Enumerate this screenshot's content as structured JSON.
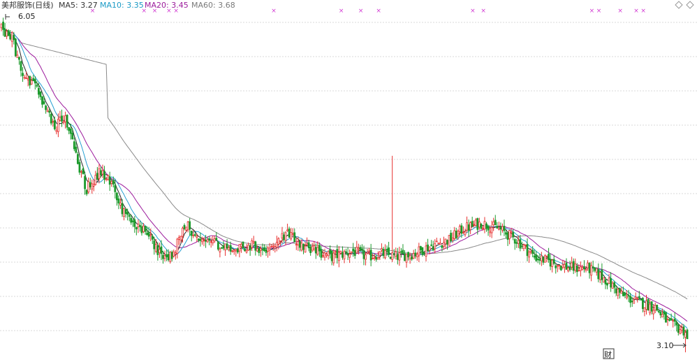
{
  "header": {
    "stock_name": "美邦服饰(日线)",
    "ma_labels": [
      {
        "text": "MA5: 3.27",
        "color": "#333333"
      },
      {
        "text": "MA10: 3.35",
        "color": "#1a9ac6"
      },
      {
        "text": "MA20: 3.45",
        "color": "#9c1c9c"
      },
      {
        "text": "MA60: 3.68",
        "color": "#7a7a7a"
      }
    ]
  },
  "icons": {
    "diamond_left": "diamond-icon",
    "diamond_right": "diamond-icon",
    "finance": "财"
  },
  "colors": {
    "up": "#e8302f",
    "down": "#1c9a2c",
    "ma5": "#222222",
    "ma10": "#27a0d2",
    "ma20": "#9c1a9c",
    "ma60": "#8a8a8a",
    "grid": "#d8d8d8",
    "marker": "#d23ad2"
  },
  "chart_data": {
    "type": "candlestick",
    "title": "美邦服饰(日线)",
    "xlabel": "",
    "ylabel": "",
    "ylim": [
      3.05,
      6.15
    ],
    "grid": {
      "horizontal": true,
      "vertical": false
    },
    "annotations": {
      "high_label": "6.05",
      "low_label": "3.10"
    },
    "marker_symbol": "×",
    "marker_bars": [
      51,
      80,
      86,
      94,
      98,
      153,
      191,
      202,
      212,
      265,
      271,
      332,
      336,
      348,
      357,
      361
    ],
    "anchors": [
      [
        0,
        5.98
      ],
      [
        6,
        5.9
      ],
      [
        12,
        5.55
      ],
      [
        20,
        5.45
      ],
      [
        30,
        5.1
      ],
      [
        36,
        5.2
      ],
      [
        42,
        4.85
      ],
      [
        48,
        4.55
      ],
      [
        55,
        4.7
      ],
      [
        62,
        4.6
      ],
      [
        70,
        4.3
      ],
      [
        80,
        4.2
      ],
      [
        88,
        4.0
      ],
      [
        96,
        3.95
      ],
      [
        104,
        4.25
      ],
      [
        112,
        4.05
      ],
      [
        118,
        4.1
      ],
      [
        128,
        4.0
      ],
      [
        140,
        4.05
      ],
      [
        150,
        4.0
      ],
      [
        160,
        4.15
      ],
      [
        170,
        4.05
      ],
      [
        186,
        3.95
      ],
      [
        198,
        4.0
      ],
      [
        206,
        3.95
      ],
      [
        214,
        3.98
      ],
      [
        222,
        3.95
      ],
      [
        232,
        3.98
      ],
      [
        242,
        4.05
      ],
      [
        252,
        4.1
      ],
      [
        260,
        4.2
      ],
      [
        270,
        4.25
      ],
      [
        280,
        4.2
      ],
      [
        290,
        4.1
      ],
      [
        300,
        3.95
      ],
      [
        310,
        3.9
      ],
      [
        320,
        3.85
      ],
      [
        330,
        3.85
      ],
      [
        340,
        3.75
      ],
      [
        350,
        3.6
      ],
      [
        358,
        3.55
      ],
      [
        368,
        3.5
      ],
      [
        376,
        3.35
      ],
      [
        386,
        3.28
      ]
    ],
    "ma5_last": 3.27,
    "ma10_last": 3.35,
    "ma20_last": 3.45,
    "ma60_last": 3.68
  }
}
